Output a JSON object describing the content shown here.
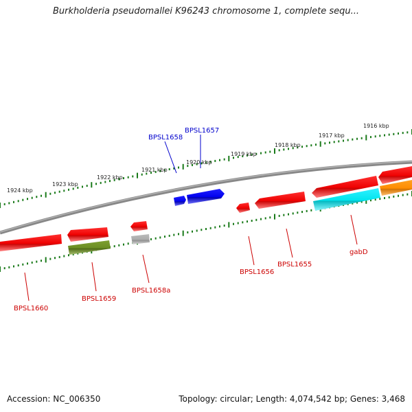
{
  "title": "Burkholderia pseudomallei K96243 chromosome 1, complete sequ...",
  "footer": {
    "accession": "Accession: NC_006350",
    "topology": "Topology: circular; Length: 4,074,542 bp; Genes: 3,468"
  },
  "colors": {
    "backbone": "#777777",
    "tick": "#1a7a1a",
    "gene_red": "#ee0000",
    "gene_blue": "#0000ee",
    "gene_olive": "#6b8e23",
    "gene_gray": "#aaaaaa",
    "gene_cyan": "#00e5ee",
    "gene_orange": "#ff8c00",
    "label_red": "#cc0000",
    "label_blue": "#0000cc"
  },
  "kbp_labels": [
    "1924 kbp",
    "1923 kbp",
    "1922 kbp",
    "1921 kbp",
    "1920 kbp",
    "1919 kbp",
    "1918 kbp",
    "1917 kbp",
    "1916 kbp"
  ],
  "gene_labels": [
    "BPSL1658",
    "BPSL1657",
    "BPSL1660",
    "BPSL1659",
    "BPSL1658a",
    "BPSL1656",
    "BPSL1655",
    "gabD"
  ],
  "genes": [
    {
      "name": "BPSL1660",
      "track": "lower",
      "color": "gene_red"
    },
    {
      "name": "BPSL1659",
      "track": "lower",
      "color": "gene_red"
    },
    {
      "name": "BPSL1659",
      "track": "lower2",
      "color": "gene_olive"
    },
    {
      "name": "BPSL1658a",
      "track": "lower",
      "color": "gene_red"
    },
    {
      "name": "BPSL1658a",
      "track": "lower2",
      "color": "gene_gray"
    },
    {
      "name": "BPSL1658",
      "track": "upper",
      "color": "gene_blue"
    },
    {
      "name": "BPSL1657",
      "track": "upper",
      "color": "gene_blue"
    },
    {
      "name": "BPSL1656",
      "track": "lower",
      "color": "gene_red"
    },
    {
      "name": "BPSL1655",
      "track": "lower",
      "color": "gene_red"
    },
    {
      "name": "gabD",
      "track": "lower",
      "color": "gene_red"
    },
    {
      "name": "gabD",
      "track": "lower2",
      "color": "gene_cyan"
    },
    {
      "name": "",
      "track": "lower",
      "color": "gene_red"
    },
    {
      "name": "",
      "track": "lower2",
      "color": "gene_orange"
    }
  ]
}
